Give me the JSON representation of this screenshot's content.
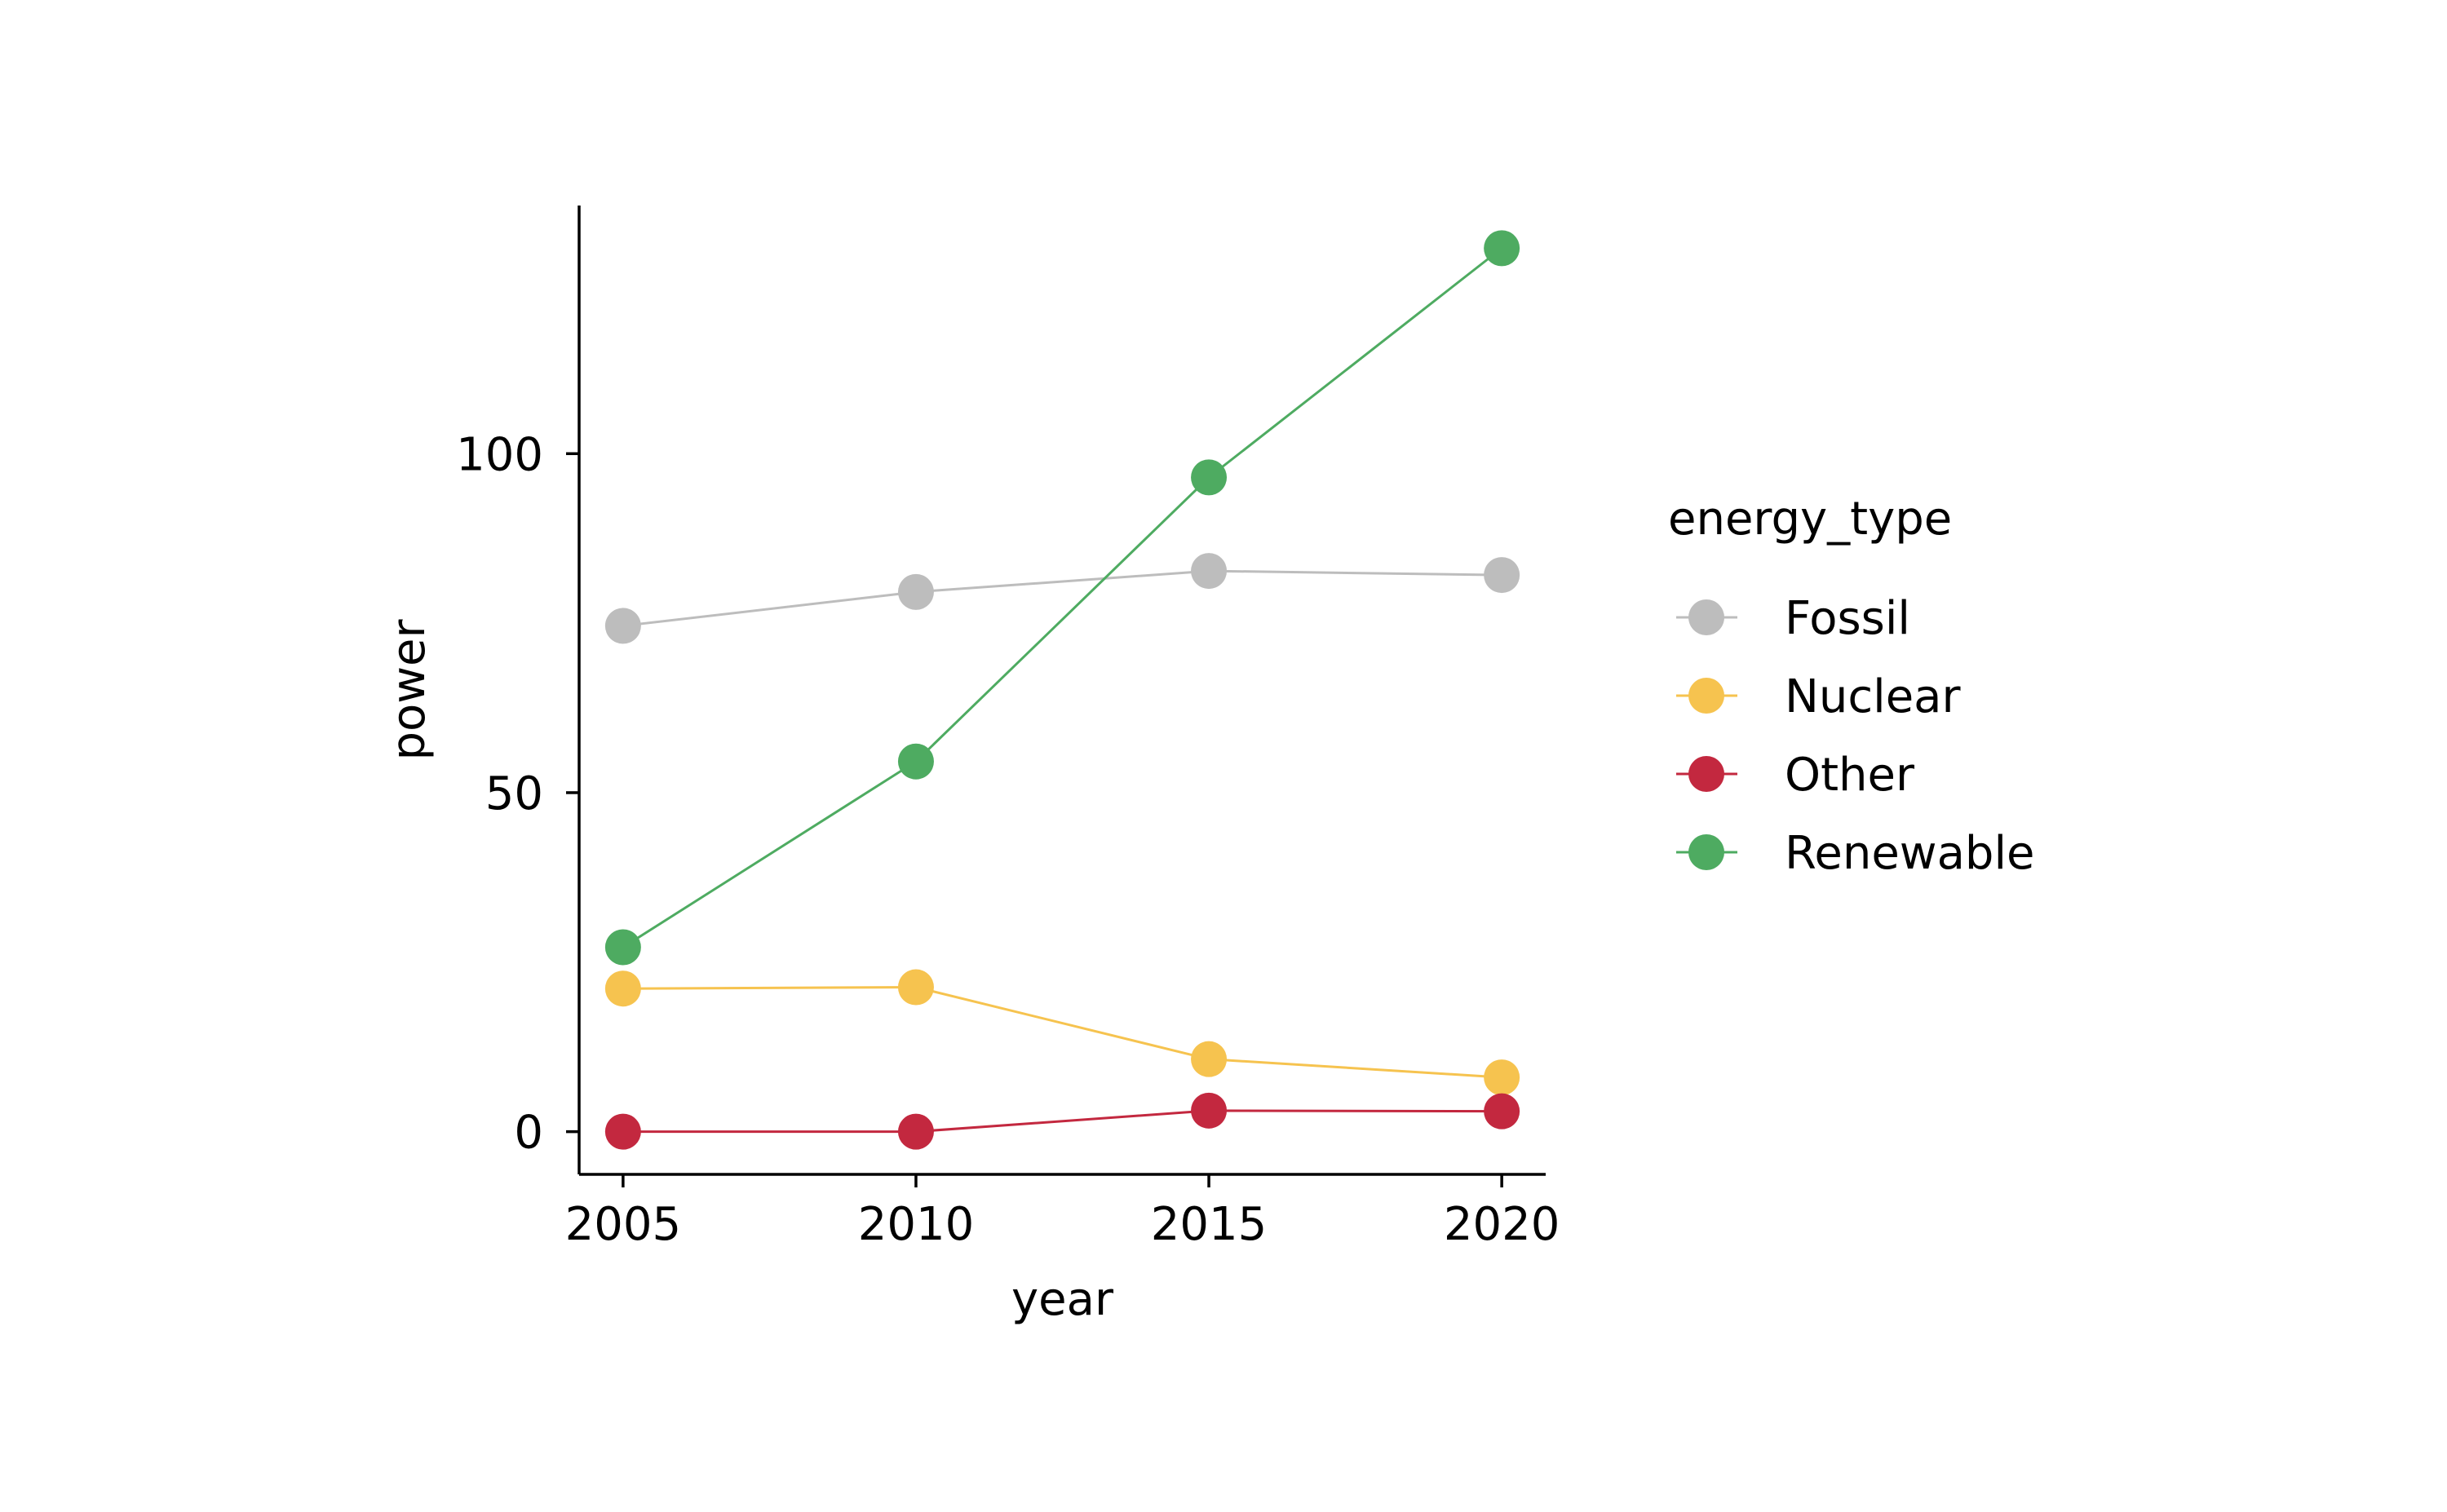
{
  "chart_data": {
    "type": "line",
    "title": "",
    "xlabel": "year",
    "ylabel": "power",
    "x": [
      2005,
      2010,
      2015,
      2020
    ],
    "xlim": [
      2004.25,
      2020.75
    ],
    "ylim": [
      -6.3,
      136.6
    ],
    "xticks": [
      "2005",
      "2010",
      "2015",
      "2020"
    ],
    "yticks": [
      "0",
      "50",
      "100"
    ],
    "grid": false,
    "legend": {
      "title": "energy_type",
      "position": "right"
    },
    "series": [
      {
        "name": "Fossil",
        "color": "#BDBDBD",
        "values": [
          74.6,
          79.6,
          82.7,
          82.1
        ]
      },
      {
        "name": "Nuclear",
        "color": "#F6C34F",
        "values": [
          21.1,
          21.3,
          10.7,
          8.0
        ]
      },
      {
        "name": "Other",
        "color": "#C3283F",
        "values": [
          0.0,
          0.0,
          3.1,
          3.0
        ]
      },
      {
        "name": "Renewable",
        "color": "#4EAB61",
        "values": [
          27.2,
          54.6,
          96.5,
          130.3
        ]
      }
    ]
  }
}
